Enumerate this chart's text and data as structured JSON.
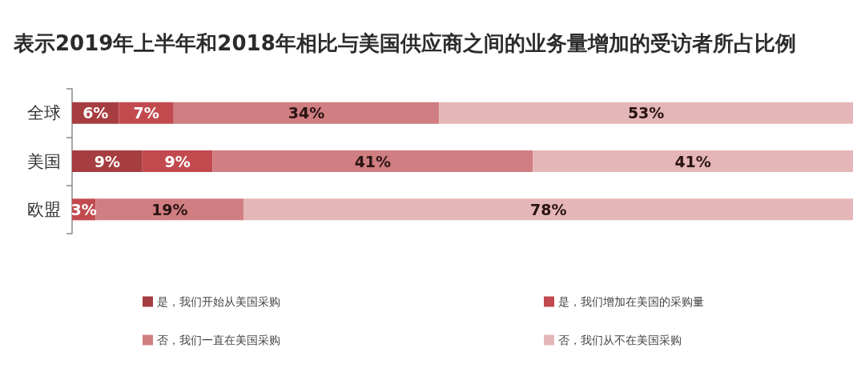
{
  "chart_data": {
    "type": "bar",
    "orientation": "horizontal",
    "stacked": true,
    "title": "表示2019年上半年和2018年相比与美国供应商之间的业务量增加的受访者所占比例",
    "categories": [
      "全球",
      "美国",
      "欧盟"
    ],
    "series": [
      {
        "name": "是，我们开始从美国采购",
        "color": "#a63d40",
        "values": [
          6,
          9,
          null
        ],
        "value_labels": [
          "6%",
          "9%",
          null
        ]
      },
      {
        "name": "是，我们增加在美国的采购量",
        "color": "#c24a4e",
        "values": [
          7,
          9,
          3
        ],
        "value_labels": [
          "7%",
          "9%",
          "3%"
        ]
      },
      {
        "name": "否，我们一直在美国采购",
        "color": "#d07e81",
        "values": [
          34,
          41,
          19
        ],
        "value_labels": [
          "34%",
          "41%",
          "19%"
        ]
      },
      {
        "name": "否，我们从不在美国采购",
        "color": "#e4b6b8",
        "values": [
          53,
          41,
          78
        ],
        "value_labels": [
          "53%",
          "41%",
          "78%"
        ]
      }
    ],
    "xlim": [
      0,
      100
    ],
    "tick_labels": "y",
    "legend": "bottom"
  }
}
